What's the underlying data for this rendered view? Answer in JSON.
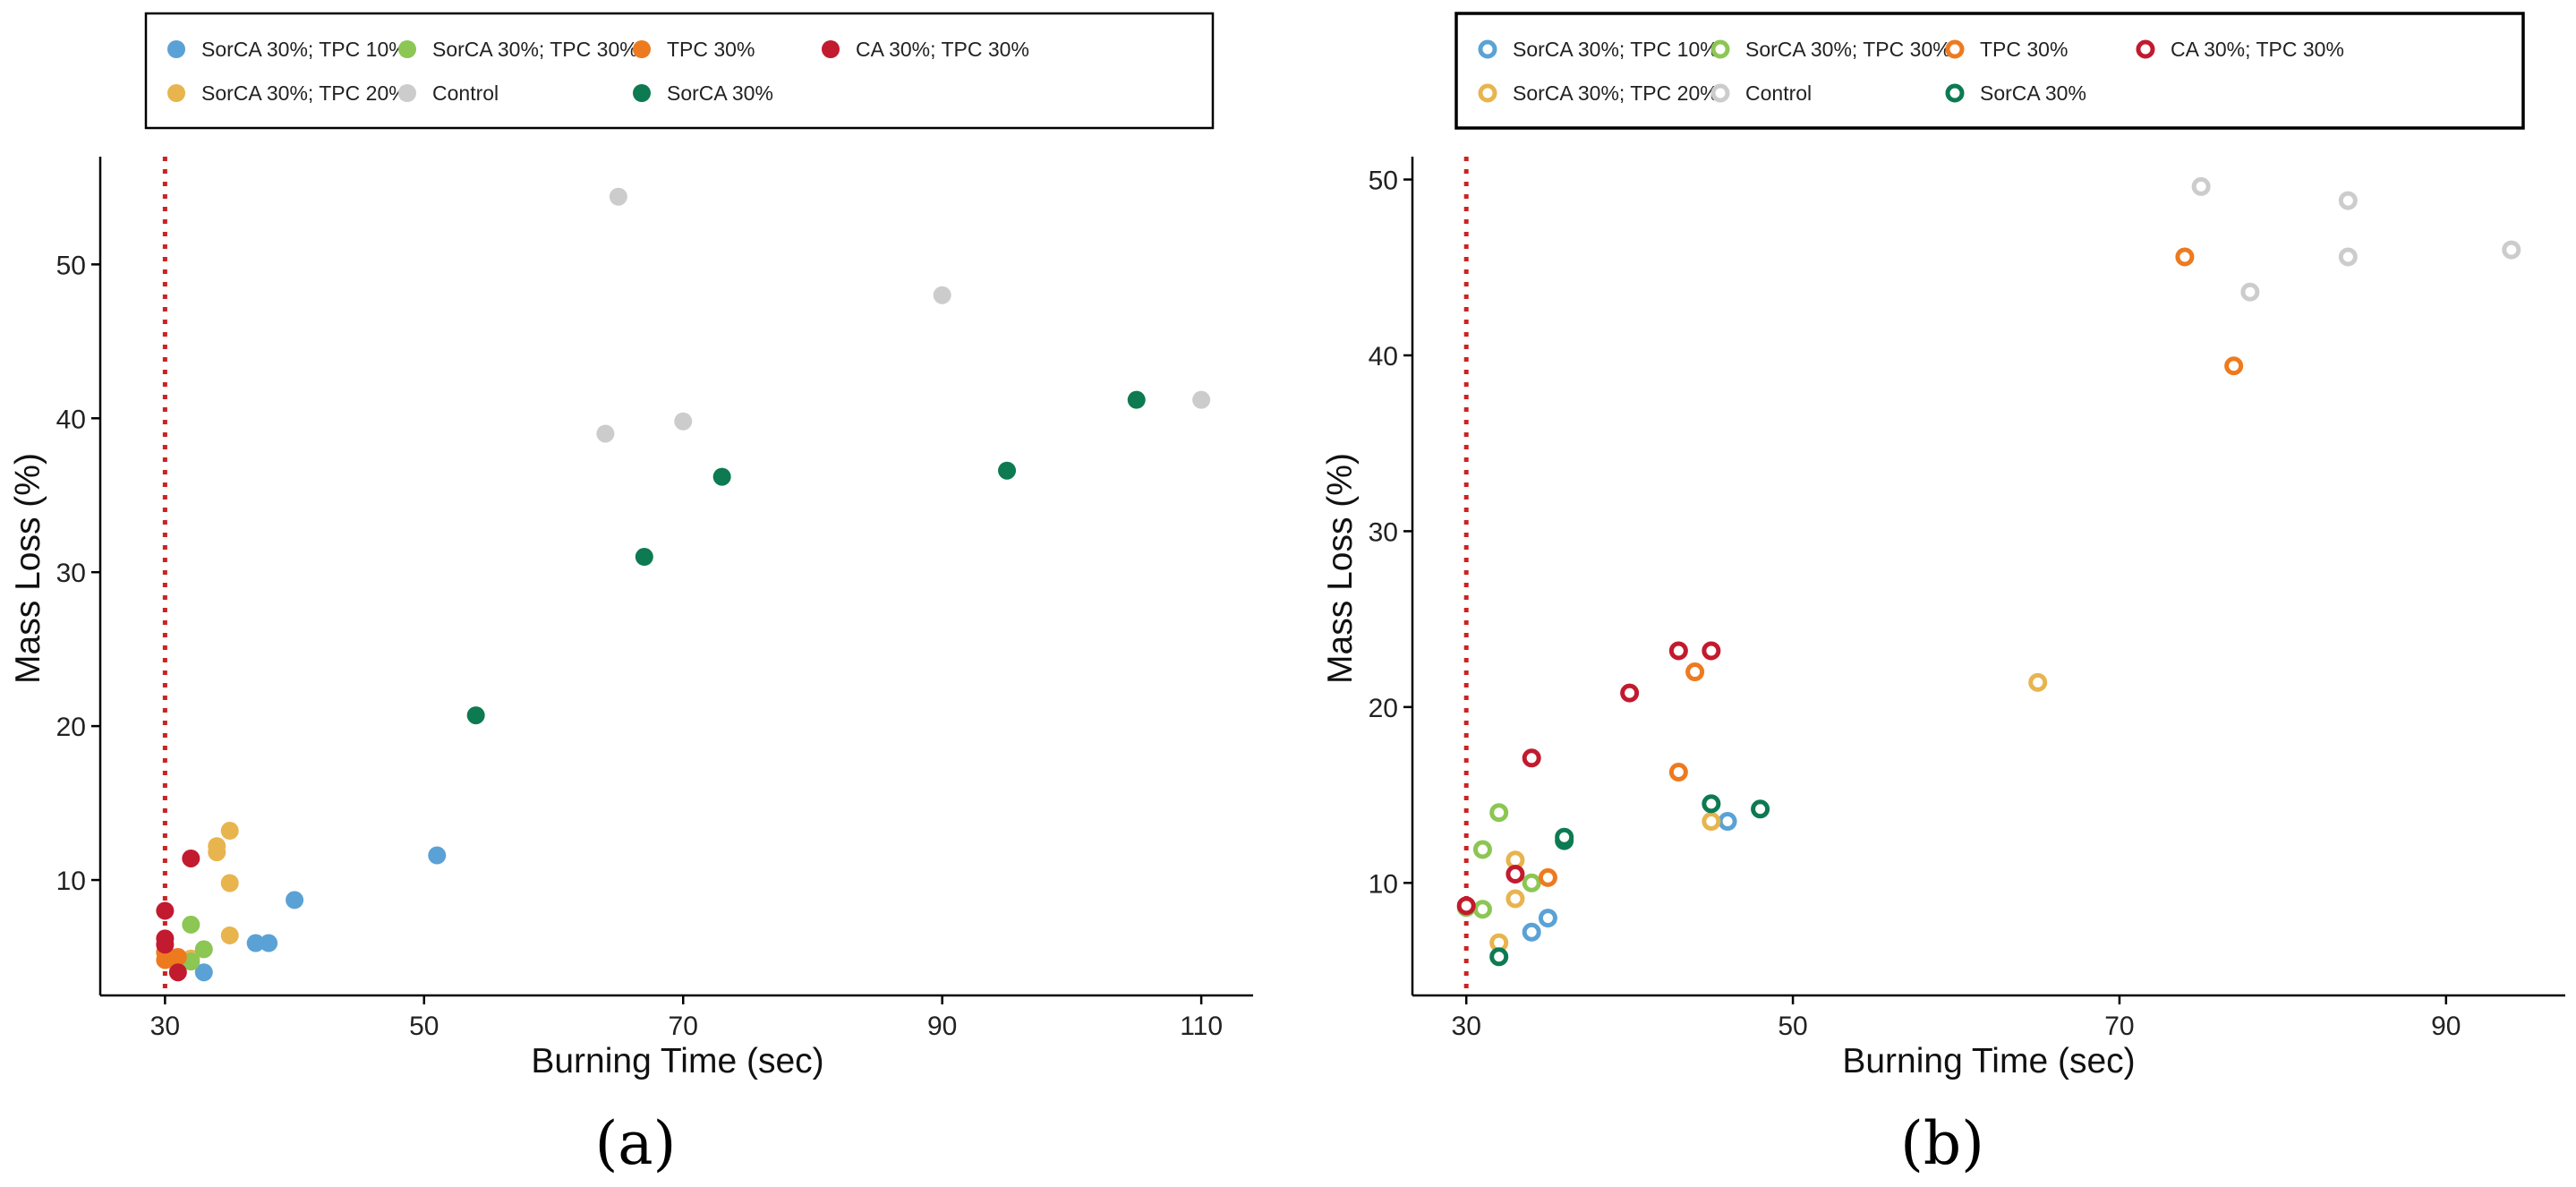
{
  "colors": {
    "SorCA 30%; TPC 10%": "#5aa2d6",
    "SorCA 30%; TPC 20%": "#e8b44e",
    "SorCA 30%; TPC 30%": "#8cc653",
    "Control": "#cccccc",
    "TPC 30%": "#ee7a1f",
    "SorCA 30%": "#0d7a52",
    "CA 30%; TPC 30%": "#c21a2e",
    "reference_line": "#cc2222"
  },
  "chart_data": [
    {
      "type": "scatter",
      "marker": "filled",
      "panel_label": "(a)",
      "xlabel": "Burning Time (sec)",
      "ylabel": "Mass Loss (%)",
      "xlim": [
        25,
        114
      ],
      "ylim": [
        2.5,
        57
      ],
      "xticks": [
        30,
        50,
        70,
        90,
        110
      ],
      "yticks": [
        10,
        20,
        30,
        40,
        50
      ],
      "reference_line_x": 30,
      "legend_position": "top",
      "legend_rows": [
        [
          "SorCA 30%; TPC 10%",
          "SorCA 30%; TPC 30%",
          "TPC 30%",
          "CA 30%; TPC 30%"
        ],
        [
          "SorCA 30%; TPC 20%",
          "Control",
          "SorCA 30%"
        ]
      ],
      "series": [
        {
          "name": "SorCA 30%; TPC 10%",
          "points": [
            [
              33,
              4.0
            ],
            [
              37,
              5.9
            ],
            [
              38,
              5.9
            ],
            [
              40,
              8.7
            ],
            [
              51,
              11.6
            ]
          ]
        },
        {
          "name": "SorCA 30%; TPC 20%",
          "points": [
            [
              31,
              4.4
            ],
            [
              32,
              4.9
            ],
            [
              34,
              11.8
            ],
            [
              34,
              12.2
            ],
            [
              35,
              13.2
            ],
            [
              35,
              9.8
            ],
            [
              35,
              6.4
            ]
          ]
        },
        {
          "name": "SorCA 30%; TPC 30%",
          "points": [
            [
              31,
              4.4
            ],
            [
              32,
              4.7
            ],
            [
              32,
              7.1
            ],
            [
              33,
              5.5
            ]
          ]
        },
        {
          "name": "Control",
          "points": [
            [
              64,
              39.0
            ],
            [
              65,
              54.4
            ],
            [
              70,
              39.8
            ],
            [
              90,
              48.0
            ],
            [
              110,
              41.2
            ]
          ]
        },
        {
          "name": "TPC 30%",
          "points": [
            [
              30,
              4.8
            ],
            [
              30,
              5.3
            ],
            [
              31,
              5.0
            ]
          ]
        },
        {
          "name": "SorCA 30%",
          "points": [
            [
              54,
              20.7
            ],
            [
              67,
              31.0
            ],
            [
              73,
              36.2
            ],
            [
              95,
              36.6
            ],
            [
              105,
              41.2
            ]
          ]
        },
        {
          "name": "CA 30%; TPC 30%",
          "points": [
            [
              30,
              8.0
            ],
            [
              30,
              6.2
            ],
            [
              30,
              5.8
            ],
            [
              31,
              4.0
            ],
            [
              32,
              11.4
            ]
          ]
        }
      ]
    },
    {
      "type": "scatter",
      "marker": "hollow",
      "panel_label": "(b)",
      "xlabel": "Burning Time (sec)",
      "ylabel": "Mass Loss (%)",
      "xlim": [
        26.7,
        97.3
      ],
      "ylim": [
        3.6,
        51.3
      ],
      "xticks": [
        30,
        50,
        70,
        90
      ],
      "yticks": [
        10,
        20,
        30,
        40,
        50
      ],
      "reference_line_x": 30,
      "legend_position": "top",
      "legend_rows": [
        [
          "SorCA 30%; TPC 10%",
          "SorCA 30%; TPC 30%",
          "TPC 30%",
          "CA 30%; TPC 30%"
        ],
        [
          "SorCA 30%; TPC 20%",
          "Control",
          "SorCA 30%"
        ]
      ],
      "series": [
        {
          "name": "SorCA 30%; TPC 10%",
          "points": [
            [
              34,
              7.2
            ],
            [
              35,
              8.0
            ],
            [
              46,
              13.5
            ]
          ]
        },
        {
          "name": "SorCA 30%; TPC 20%",
          "points": [
            [
              32,
              6.6
            ],
            [
              33,
              9.1
            ],
            [
              33,
              11.3
            ],
            [
              45,
              13.5
            ],
            [
              65,
              21.4
            ]
          ]
        },
        {
          "name": "SorCA 30%; TPC 30%",
          "points": [
            [
              30,
              8.6
            ],
            [
              31,
              8.5
            ],
            [
              31,
              11.9
            ],
            [
              32,
              14.0
            ],
            [
              34,
              10.0
            ]
          ]
        },
        {
          "name": "Control",
          "points": [
            [
              75,
              49.6
            ],
            [
              78,
              43.6
            ],
            [
              84,
              48.8
            ],
            [
              84,
              45.6
            ],
            [
              94,
              46.0
            ]
          ]
        },
        {
          "name": "TPC 30%",
          "points": [
            [
              35,
              10.3
            ],
            [
              43,
              16.3
            ],
            [
              44,
              22.0
            ],
            [
              74,
              45.6
            ],
            [
              77,
              39.4
            ]
          ]
        },
        {
          "name": "SorCA 30%",
          "points": [
            [
              32,
              5.8
            ],
            [
              36,
              12.4
            ],
            [
              36,
              12.6
            ],
            [
              45,
              14.5
            ],
            [
              48,
              14.2
            ]
          ]
        },
        {
          "name": "CA 30%; TPC 30%",
          "points": [
            [
              30,
              8.7
            ],
            [
              33,
              10.5
            ],
            [
              34,
              17.1
            ],
            [
              40,
              20.8
            ],
            [
              43,
              23.2
            ],
            [
              45,
              23.2
            ]
          ]
        }
      ]
    }
  ]
}
